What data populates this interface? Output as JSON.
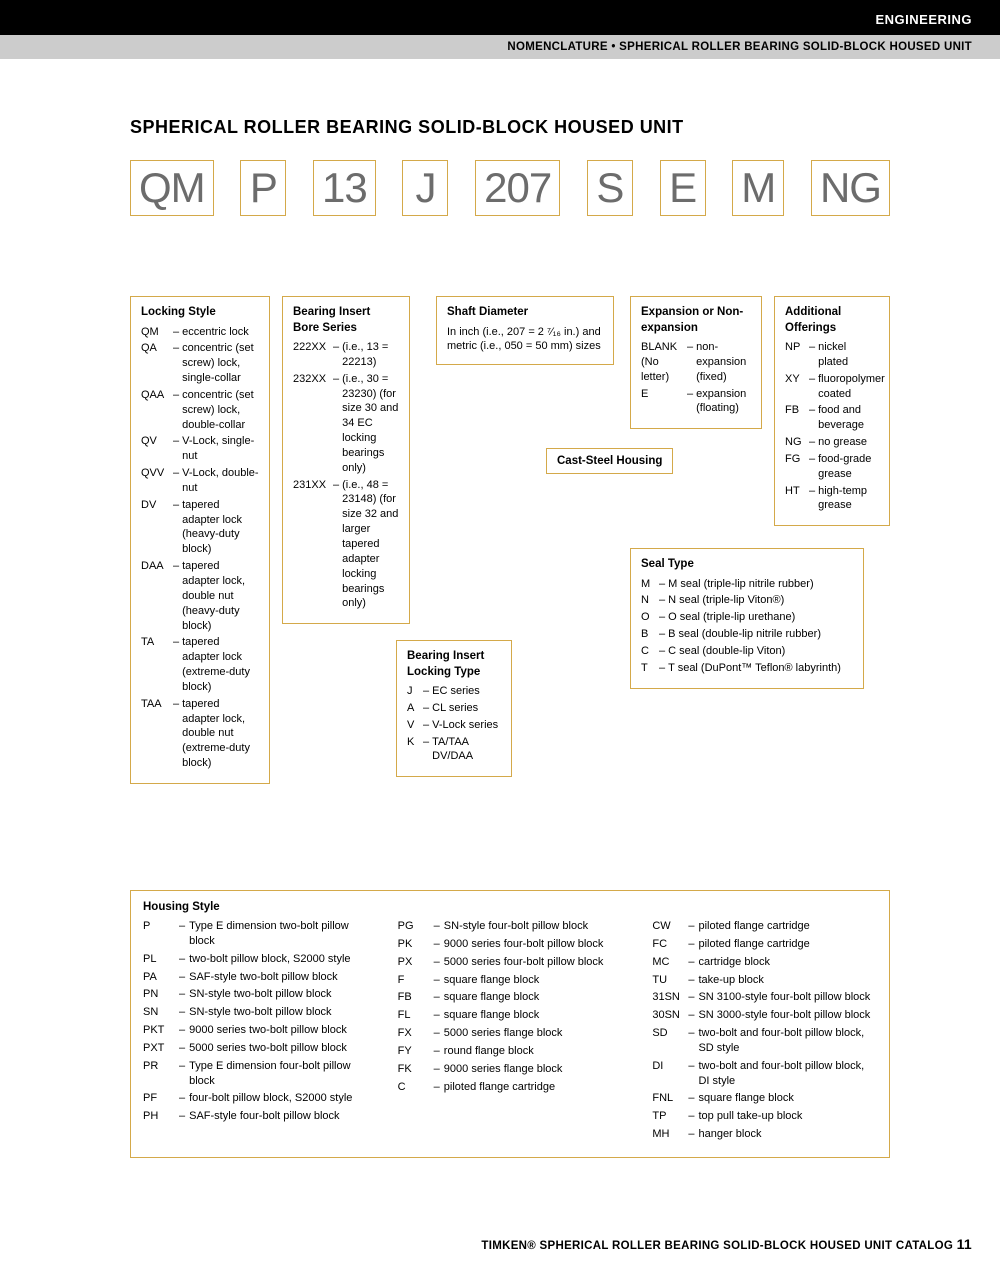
{
  "header": {
    "category": "ENGINEERING",
    "subtitle": "NOMENCLATURE • SPHERICAL ROLLER BEARING SOLID-BLOCK HOUSED UNIT"
  },
  "title": "SPHERICAL ROLLER BEARING SOLID-BLOCK HOUSED UNIT",
  "code_parts": [
    "QM",
    "P",
    "13",
    "J",
    "207",
    "S",
    "E",
    "M",
    "NG"
  ],
  "locking_style": {
    "heading": "Locking Style",
    "items": [
      {
        "k": "QM",
        "v": "eccentric lock"
      },
      {
        "k": "QA",
        "v": "concentric (set screw) lock, single-collar"
      },
      {
        "k": "QAA",
        "v": "concentric (set screw) lock, double-collar"
      },
      {
        "k": "QV",
        "v": "V-Lock, single-nut"
      },
      {
        "k": "QVV",
        "v": "V-Lock, double-nut"
      },
      {
        "k": "DV",
        "v": "tapered adapter lock (heavy-duty block)"
      },
      {
        "k": "DAA",
        "v": "tapered adapter lock, double nut (heavy-duty block)"
      },
      {
        "k": "TA",
        "v": "tapered adapter lock (extreme-duty block)"
      },
      {
        "k": "TAA",
        "v": "tapered adapter lock, double nut (extreme-duty block)"
      }
    ]
  },
  "bore_series": {
    "heading": "Bearing Insert Bore Series",
    "items": [
      {
        "k": "222XX",
        "v": "(i.e., 13 = 22213)"
      },
      {
        "k": "232XX",
        "v": "(i.e., 30 = 23230) (for size 30 and 34 EC locking bearings only)"
      },
      {
        "k": "231XX",
        "v": "(i.e., 48 = 23148) (for size 32 and larger tapered adapter locking bearings only)"
      }
    ]
  },
  "locking_type": {
    "heading": "Bearing Insert Locking Type",
    "items": [
      {
        "k": "J",
        "v": "EC series"
      },
      {
        "k": "A",
        "v": "CL series"
      },
      {
        "k": "V",
        "v": "V-Lock series"
      },
      {
        "k": "K",
        "v": "TA/TAA DV/DAA"
      }
    ]
  },
  "shaft_diameter": {
    "heading": "Shaft Diameter",
    "text": "In inch (i.e., 207 = 2 ⁷⁄₁₆ in.) and metric (i.e., 050 = 50 mm) sizes"
  },
  "cast_steel": "Cast-Steel Housing",
  "expansion": {
    "heading": "Expansion or Non-expansion",
    "items": [
      {
        "k": "BLANK (No letter)",
        "v": "non-expansion (fixed)"
      },
      {
        "k": "E",
        "v": "expansion (floating)"
      }
    ]
  },
  "seal_type": {
    "heading": "Seal Type",
    "items": [
      {
        "k": "M",
        "v": "M seal (triple-lip nitrile rubber)"
      },
      {
        "k": "N",
        "v": "N seal (triple-lip Viton®)"
      },
      {
        "k": "O",
        "v": "O seal (triple-lip urethane)"
      },
      {
        "k": "B",
        "v": "B seal (double-lip nitrile rubber)"
      },
      {
        "k": "C",
        "v": "C seal (double-lip Viton)"
      },
      {
        "k": "T",
        "v": "T seal (DuPont™ Teflon® labyrinth)"
      }
    ]
  },
  "additional": {
    "heading": "Additional Offerings",
    "items": [
      {
        "k": "NP",
        "v": "nickel plated"
      },
      {
        "k": "XY",
        "v": "fluoropolymer coated"
      },
      {
        "k": "FB",
        "v": "food and beverage"
      },
      {
        "k": "NG",
        "v": "no grease"
      },
      {
        "k": "FG",
        "v": "food-grade grease"
      },
      {
        "k": "HT",
        "v": "high-temp grease"
      }
    ]
  },
  "housing": {
    "heading": "Housing Style",
    "col1": [
      {
        "k": "P",
        "v": "Type E dimension two-bolt pillow block"
      },
      {
        "k": "PL",
        "v": "two-bolt pillow block, S2000 style"
      },
      {
        "k": "PA",
        "v": "SAF-style two-bolt pillow block"
      },
      {
        "k": "PN",
        "v": "SN-style two-bolt pillow block"
      },
      {
        "k": "SN",
        "v": "SN-style two-bolt pillow block"
      },
      {
        "k": "PKT",
        "v": "9000 series two-bolt pillow block"
      },
      {
        "k": "PXT",
        "v": "5000 series two-bolt pillow block"
      },
      {
        "k": "PR",
        "v": "Type E dimension four-bolt pillow block"
      },
      {
        "k": "PF",
        "v": "four-bolt pillow block, S2000 style"
      },
      {
        "k": "PH",
        "v": "SAF-style four-bolt pillow block"
      }
    ],
    "col2": [
      {
        "k": "PG",
        "v": "SN-style four-bolt pillow block"
      },
      {
        "k": "PK",
        "v": "9000 series four-bolt pillow block"
      },
      {
        "k": "PX",
        "v": "5000 series four-bolt pillow block"
      },
      {
        "k": "F",
        "v": "square flange block"
      },
      {
        "k": "FB",
        "v": "square flange block"
      },
      {
        "k": "FL",
        "v": "square flange block"
      },
      {
        "k": "FX",
        "v": "5000 series flange block"
      },
      {
        "k": "FY",
        "v": "round flange block"
      },
      {
        "k": "FK",
        "v": "9000 series flange block"
      },
      {
        "k": "C",
        "v": "piloted flange cartridge"
      }
    ],
    "col3": [
      {
        "k": "CW",
        "v": "piloted flange cartridge"
      },
      {
        "k": "FC",
        "v": "piloted flange cartridge"
      },
      {
        "k": "MC",
        "v": "cartridge block"
      },
      {
        "k": "TU",
        "v": "take-up block"
      },
      {
        "k": "31SN",
        "v": "SN 3100-style four-bolt pillow block"
      },
      {
        "k": "30SN",
        "v": "SN 3000-style four-bolt pillow block"
      },
      {
        "k": "SD",
        "v": "two-bolt and four-bolt pillow block, SD style"
      },
      {
        "k": "DI",
        "v": "two-bolt and four-bolt pillow block, DI style"
      },
      {
        "k": "FNL",
        "v": "square flange block"
      },
      {
        "k": "TP",
        "v": "top pull take-up block"
      },
      {
        "k": "MH",
        "v": "hanger block"
      }
    ]
  },
  "footer": {
    "text": "TIMKEN® SPHERICAL ROLLER BEARING SOLID-BLOCK HOUSED UNIT CATALOG",
    "page": "11"
  },
  "colors": {
    "accent": "#d4a94a",
    "code_text": "#6c6c6c"
  }
}
